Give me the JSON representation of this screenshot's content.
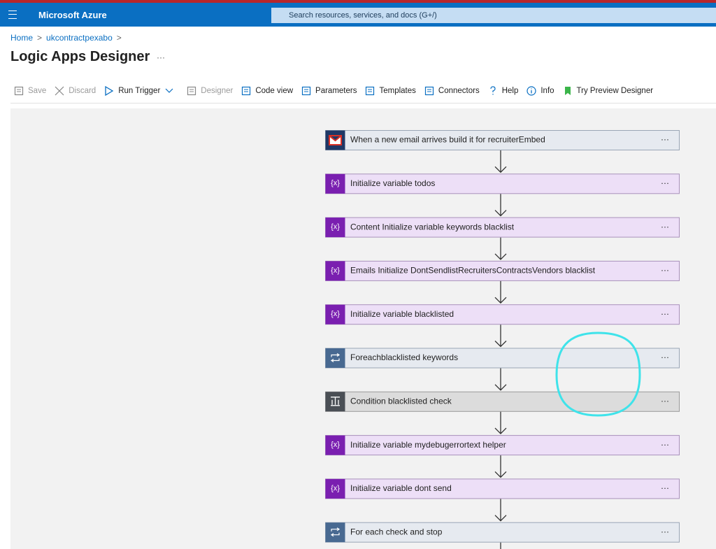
{
  "header": {
    "brand": "Microsoft Azure",
    "search": "Search resources, services, and docs (G+/)"
  },
  "breadcrumb": [
    "Home",
    "ukcontractpexabo"
  ],
  "title": "Logic Apps Designer",
  "more": "···",
  "variable_icon": "{x}",
  "toolbar": [
    {
      "label": "Save",
      "disabled": true
    },
    {
      "label": "Discard",
      "disabled": true
    },
    {
      "label": "Run Trigger",
      "disabled": false
    },
    {
      "label": "Designer",
      "disabled": true
    },
    {
      "label": "Code view",
      "disabled": false
    },
    {
      "label": "Parameters",
      "disabled": false
    },
    {
      "label": "Templates",
      "disabled": false
    },
    {
      "label": "Connectors",
      "disabled": false
    },
    {
      "label": "Help",
      "disabled": false
    },
    {
      "label": "Info",
      "disabled": false
    },
    {
      "label": "Try Preview Designer",
      "disabled": false
    }
  ],
  "steps": [
    {
      "label": "When a new email arrives build it for recruiterEmbed",
      "kind": "email"
    },
    {
      "label": "Initialize variable todos",
      "kind": "variable"
    },
    {
      "label": "Content Initialize variable keywords blacklist",
      "kind": "variable"
    },
    {
      "label": "Emails Initialize DontSendlistRecruitersContractsVendors blacklist",
      "kind": "variable"
    },
    {
      "label": "Initialize variable blacklisted",
      "kind": "variable"
    },
    {
      "label": "Foreachblacklisted keywords",
      "kind": "loop"
    },
    {
      "label": "Condition blacklisted check",
      "kind": "condition"
    },
    {
      "label": "Initialize variable mydebugerrortext helper",
      "kind": "variable"
    },
    {
      "label": "Initialize variable dont send",
      "kind": "variable"
    },
    {
      "label": "For each check and stop",
      "kind": "loop"
    }
  ]
}
